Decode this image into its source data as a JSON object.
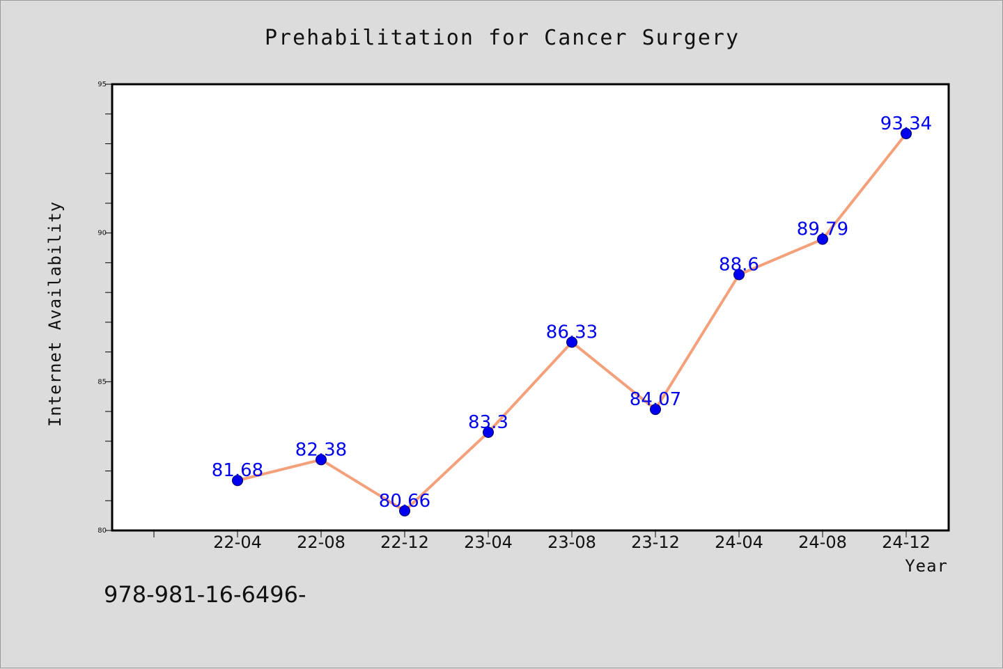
{
  "chart_data": {
    "type": "line",
    "title": "Prehabilitation for Cancer Surgery",
    "xlabel": "Year",
    "ylabel": "Internet Availability",
    "categories": [
      "22-04",
      "22-08",
      "22-12",
      "23-04",
      "23-08",
      "23-12",
      "24-04",
      "24-08",
      "24-12"
    ],
    "series": [
      {
        "values": [
          81.68,
          82.38,
          80.66,
          83.3,
          86.33,
          84.07,
          88.6,
          89.79,
          93.34
        ],
        "labels": [
          "81.68",
          "82.38",
          "80.66",
          "83.3",
          "86.33",
          "84.07",
          "88.6",
          "89.79",
          "93.34"
        ]
      }
    ],
    "ylim": [
      80,
      95
    ],
    "yticks": [
      80,
      85,
      90,
      95
    ],
    "ytick_labels": [
      "80",
      "85",
      "90",
      "95"
    ],
    "grid": false,
    "colors": {
      "line": "#f4a07a",
      "marker": "#0000ee",
      "label": "#0000ee",
      "background": "#dcdcdc",
      "plot_background": "#ffffff"
    }
  },
  "footer_text": "978-981-16-6496-"
}
